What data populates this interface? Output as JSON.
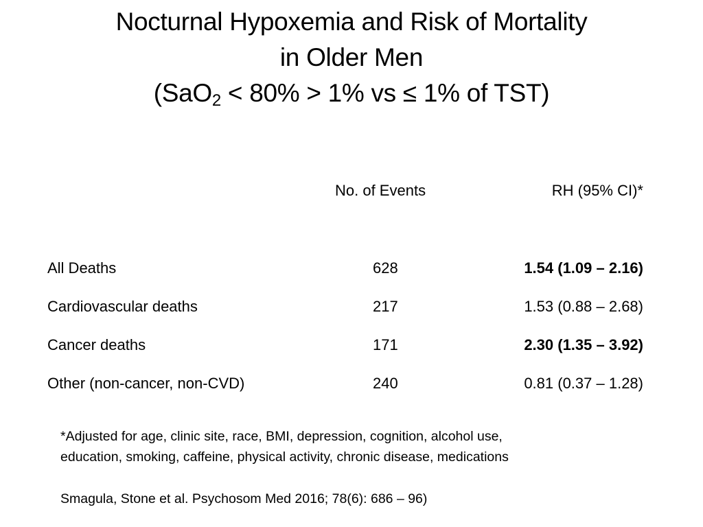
{
  "title": {
    "line1": "Nocturnal Hypoxemia and Risk of Mortality",
    "line2": "in Older Men",
    "line3_pre": "(SaO",
    "line3_sub": "2",
    "line3_post": " < 80% > 1% vs ≤ 1% of TST)"
  },
  "table": {
    "headers": {
      "events": "No. of Events",
      "rh": "RH (95% CI)*"
    },
    "rows": [
      {
        "label": "All Deaths",
        "events": "628",
        "rh": "1.54 (1.09 – 2.16)",
        "bold": true
      },
      {
        "label": "Cardiovascular deaths",
        "events": "217",
        "rh": "1.53 (0.88 – 2.68)",
        "bold": false
      },
      {
        "label": "Cancer deaths",
        "events": "171",
        "rh": "2.30 (1.35 – 3.92)",
        "bold": true
      },
      {
        "label": "Other (non-cancer, non-CVD)",
        "events": "240",
        "rh": "0.81 (0.37 – 1.28)",
        "bold": false
      }
    ]
  },
  "footnote": {
    "line1": "*Adjusted for age, clinic site, race, BMI, depression, cognition, alcohol use,",
    "line2": "education, smoking, caffeine, physical activity, chronic disease, medications"
  },
  "citation": "Smagula, Stone et al. Psychosom Med 2016; 78(6): 686 – 96)"
}
